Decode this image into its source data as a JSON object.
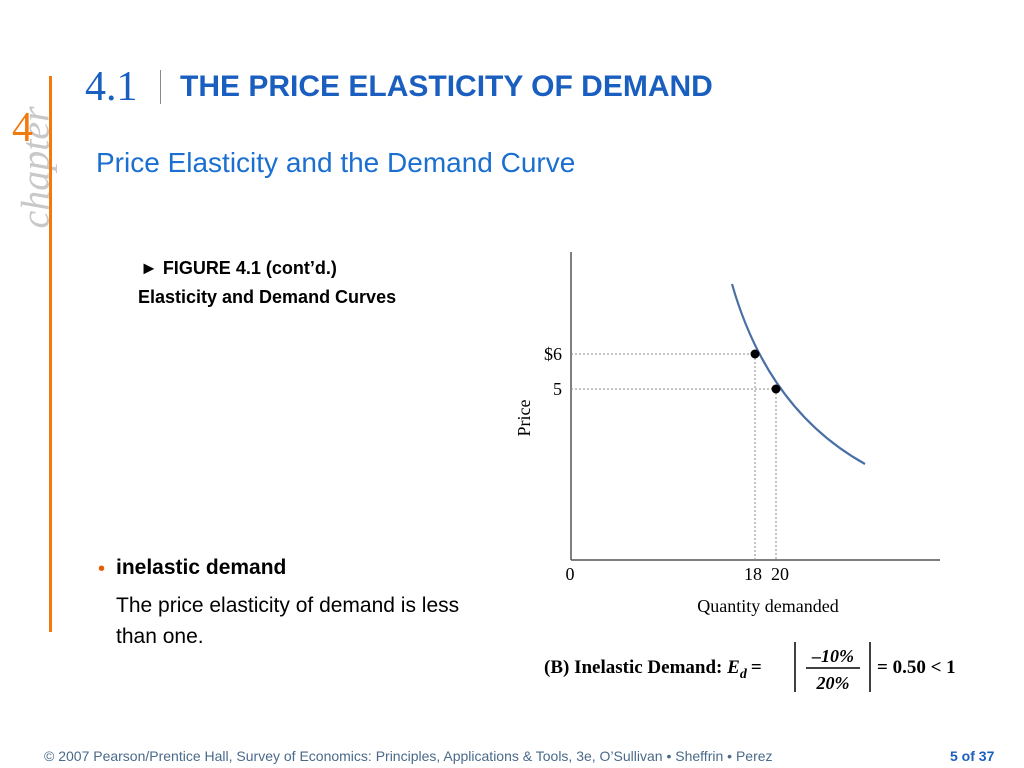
{
  "sidebar": {
    "chapter_word": "chapter",
    "chapter_number": "4"
  },
  "header": {
    "section_number": "4.1",
    "section_title": "THE PRICE ELASTICITY OF DEMAND"
  },
  "subtitle": "Price Elasticity and the Demand Curve",
  "figure": {
    "label": "► FIGURE 4.1 (cont’d.)",
    "caption": "Elasticity and Demand Curves"
  },
  "bullet": {
    "term": "inelastic demand",
    "definition": "The price elasticity of demand is less than one."
  },
  "chart_data": {
    "type": "line",
    "xlabel": "Quantity demanded",
    "ylabel": "Price",
    "points": [
      {
        "x": 18,
        "y": 6
      },
      {
        "x": 20,
        "y": 5
      }
    ],
    "x_ticks": [
      "0",
      "18",
      "20"
    ],
    "y_ticks": [
      "$6",
      "5"
    ],
    "caption": {
      "prefix": "(B) Inelastic Demand:",
      "symbol": "E",
      "subscript": "d",
      "equals": "=",
      "numerator": "–10%",
      "denominator": "20%",
      "result": "= 0.50 < 1"
    },
    "colors": {
      "curve": "#4a6fa5",
      "axis": "#555555"
    }
  },
  "footer": {
    "credit": "© 2007 Pearson/Prentice Hall, Survey of Economics: Principles, Applications & Tools, 3e, O’Sullivan • Sheffrin • Perez",
    "page": "5 of 37"
  }
}
